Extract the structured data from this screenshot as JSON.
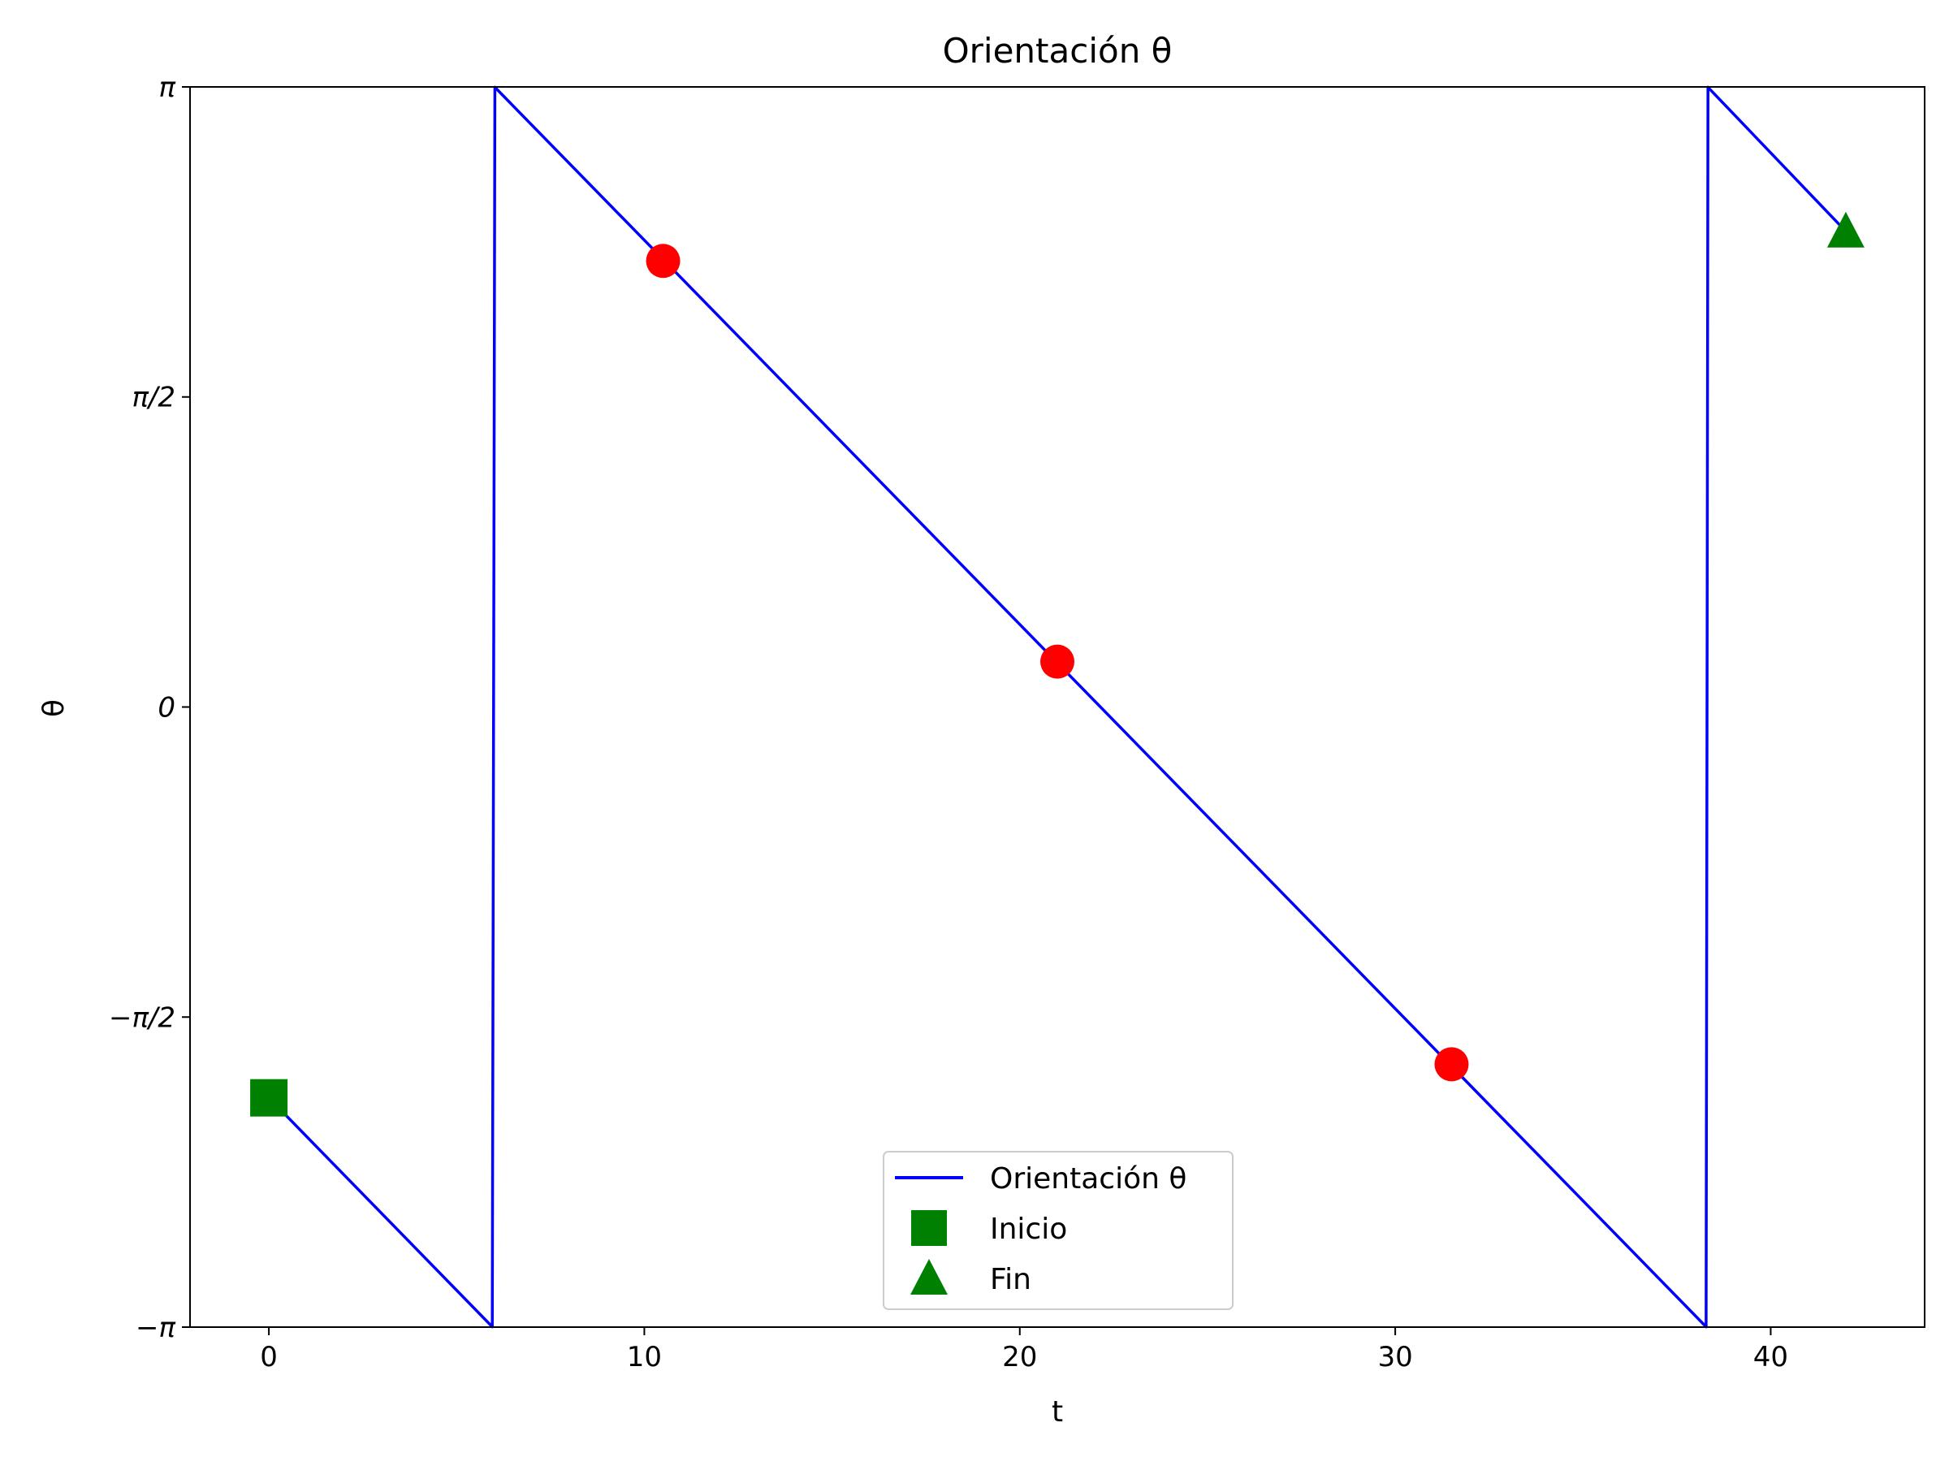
{
  "chart_data": {
    "type": "line",
    "title": "Orientación θ",
    "xlabel": "t",
    "ylabel": "θ",
    "xlim": [
      -2.1,
      44.1
    ],
    "ylim": [
      -3.14159,
      3.14159
    ],
    "x_ticks": [
      {
        "value": 0,
        "label": "0"
      },
      {
        "value": 10,
        "label": "10"
      },
      {
        "value": 20,
        "label": "20"
      },
      {
        "value": 30,
        "label": "30"
      },
      {
        "value": 40,
        "label": "40"
      }
    ],
    "y_ticks": [
      {
        "value": -3.14159,
        "label": "−π"
      },
      {
        "value": -1.5708,
        "label": "−π/2"
      },
      {
        "value": 0,
        "label": "0"
      },
      {
        "value": 1.5708,
        "label": "π/2"
      },
      {
        "value": 3.14159,
        "label": "π"
      }
    ],
    "grid": false,
    "legend_position": "lower-center",
    "series": [
      {
        "name": "Orientación θ",
        "color": "#0000ff",
        "x": [
          0,
          5.95,
          6.02,
          38.28,
          38.33,
          42.0
        ],
        "y": [
          -1.98,
          -3.14,
          3.14,
          -3.14,
          3.14,
          2.41
        ]
      }
    ],
    "points": [
      {
        "x": 10.5,
        "y": 2.26,
        "color": "#ff0000",
        "marker": "circle"
      },
      {
        "x": 21.0,
        "y": 0.23,
        "color": "#ff0000",
        "marker": "circle"
      },
      {
        "x": 31.5,
        "y": -1.81,
        "color": "#ff0000",
        "marker": "circle"
      }
    ],
    "start_marker": {
      "name": "Inicio",
      "x": 0,
      "y": -1.98,
      "color": "#008000",
      "marker": "square"
    },
    "end_marker": {
      "name": "Fin",
      "x": 42.0,
      "y": 2.41,
      "color": "#008000",
      "marker": "triangle"
    },
    "legend": [
      {
        "label": "Orientación θ",
        "kind": "line",
        "color": "#0000ff"
      },
      {
        "label": "Inicio",
        "kind": "square",
        "color": "#008000"
      },
      {
        "label": "Fin",
        "kind": "triangle",
        "color": "#008000"
      }
    ]
  }
}
